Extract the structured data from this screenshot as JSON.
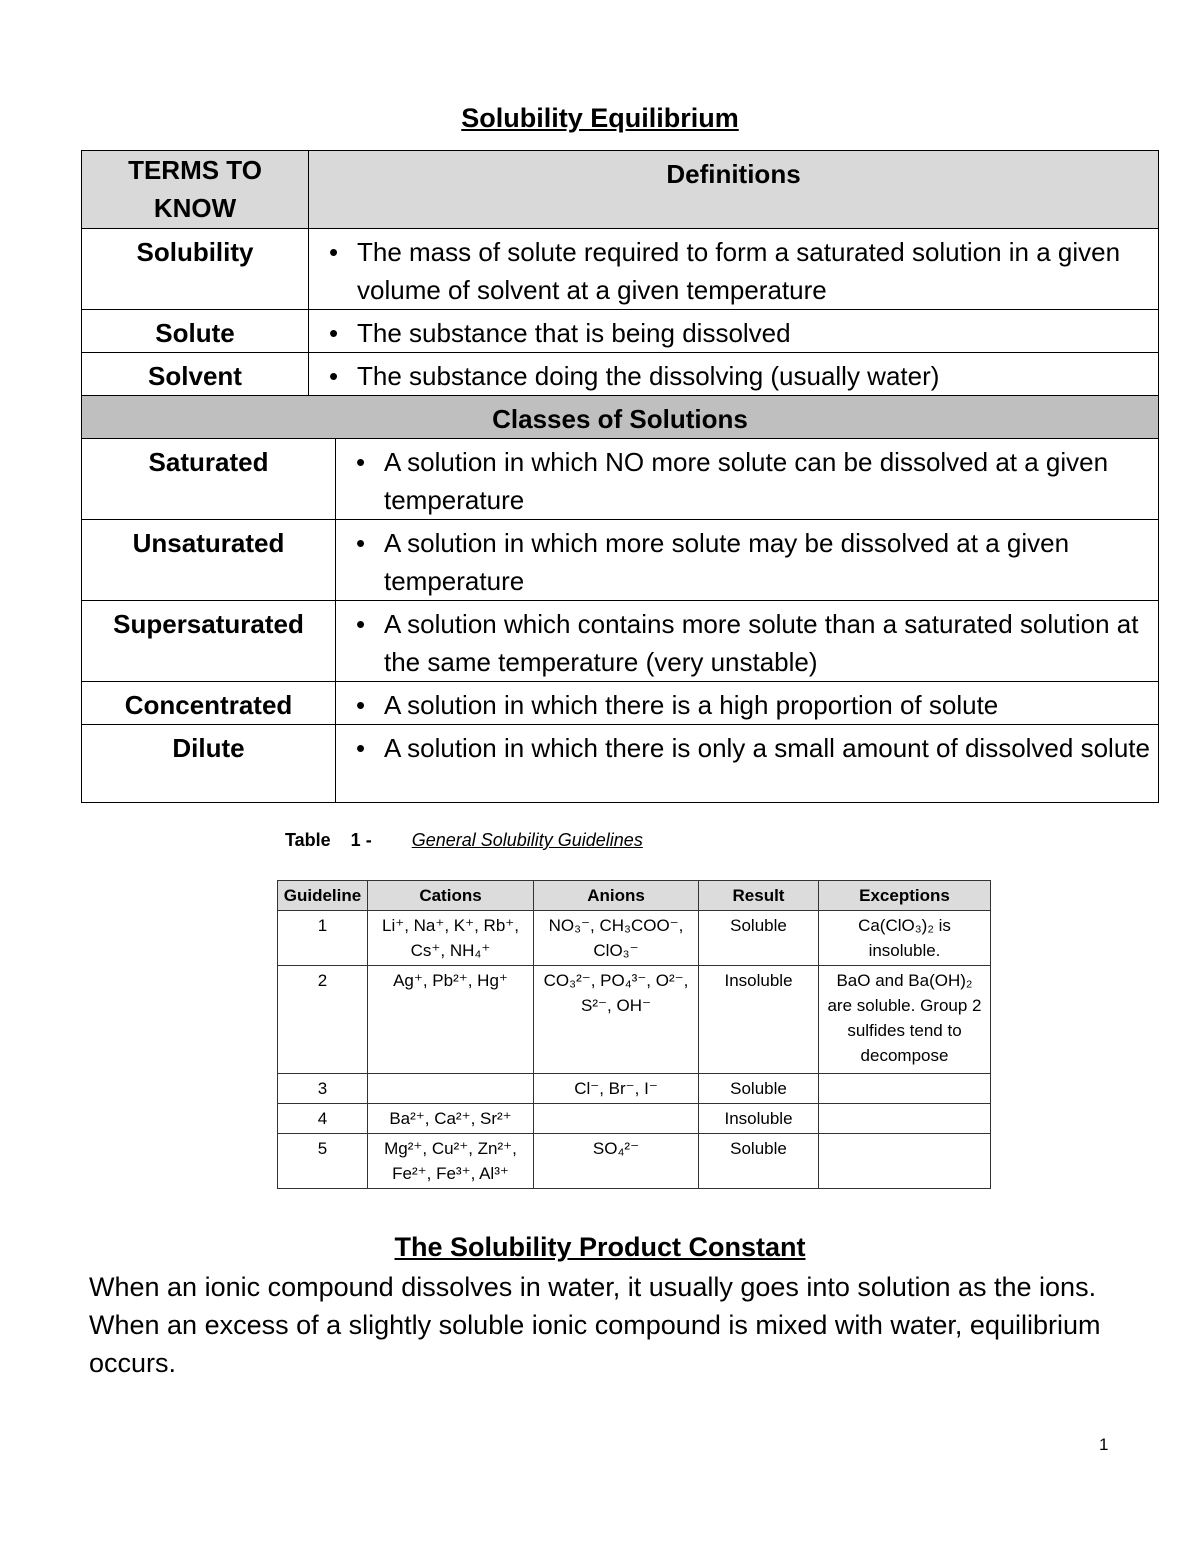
{
  "title": "Solubility Equilibrium",
  "terms_table": {
    "headers": [
      "TERMS TO KNOW",
      "Definitions"
    ],
    "rows": [
      {
        "term": "Solubility",
        "definition": "The mass of solute required to form a saturated solution in a given volume of solvent at a given temperature"
      },
      {
        "term": "Solute",
        "definition": "The substance that is being dissolved"
      },
      {
        "term": "Solvent",
        "definition": "The substance doing the dissolving (usually water)"
      }
    ],
    "section_header": "Classes of Solutions",
    "class_rows": [
      {
        "term": "Saturated",
        "definition": "A solution in which NO more solute can be dissolved at a given temperature"
      },
      {
        "term": "Unsaturated",
        "definition": "A solution in which more solute may be dissolved at a given temperature"
      },
      {
        "term": "Supersaturated",
        "definition": "A solution which contains more solute than a saturated solution at the same temperature (very unstable)"
      },
      {
        "term": "Concentrated",
        "definition": "A solution in which there is a high proportion of solute"
      },
      {
        "term": "Dilute",
        "definition": "A solution in which there is only a small amount of dissolved solute"
      }
    ]
  },
  "guidelines_table": {
    "caption_label": "Table    1 -",
    "caption_title": "General Solubility Guidelines",
    "headers": [
      "Guideline",
      "Cations",
      "Anions",
      "Result",
      "Exceptions"
    ],
    "rows": [
      [
        "1",
        "Li⁺, Na⁺, K⁺, Rb⁺, Cs⁺, NH₄⁺",
        "NO₃⁻, CH₃COO⁻, ClO₃⁻",
        "Soluble",
        "Ca(ClO₃)₂ is insoluble."
      ],
      [
        "2",
        "Ag⁺, Pb²⁺, Hg⁺",
        "CO₃²⁻, PO₄³⁻, O²⁻, S²⁻, OH⁻",
        "Insoluble",
        "BaO and Ba(OH)₂ are soluble.  Group 2 sulfides tend to decompose"
      ],
      [
        "3",
        "",
        "Cl⁻, Br⁻, I⁻",
        "Soluble",
        ""
      ],
      [
        "4",
        "Ba²⁺, Ca²⁺, Sr²⁺",
        "",
        "Insoluble",
        ""
      ],
      [
        "5",
        "Mg²⁺, Cu²⁺, Zn²⁺, Fe²⁺, Fe³⁺, Al³⁺",
        "SO₄²⁻",
        "Soluble",
        ""
      ]
    ]
  },
  "section_title": "The Solubility Product Constant",
  "paragraph": "When an ionic compound dissolves in water, it usually goes into solution as the ions. When an excess of a slightly soluble ionic compound is mixed with water, equilibrium occurs.",
  "page_number": "1"
}
